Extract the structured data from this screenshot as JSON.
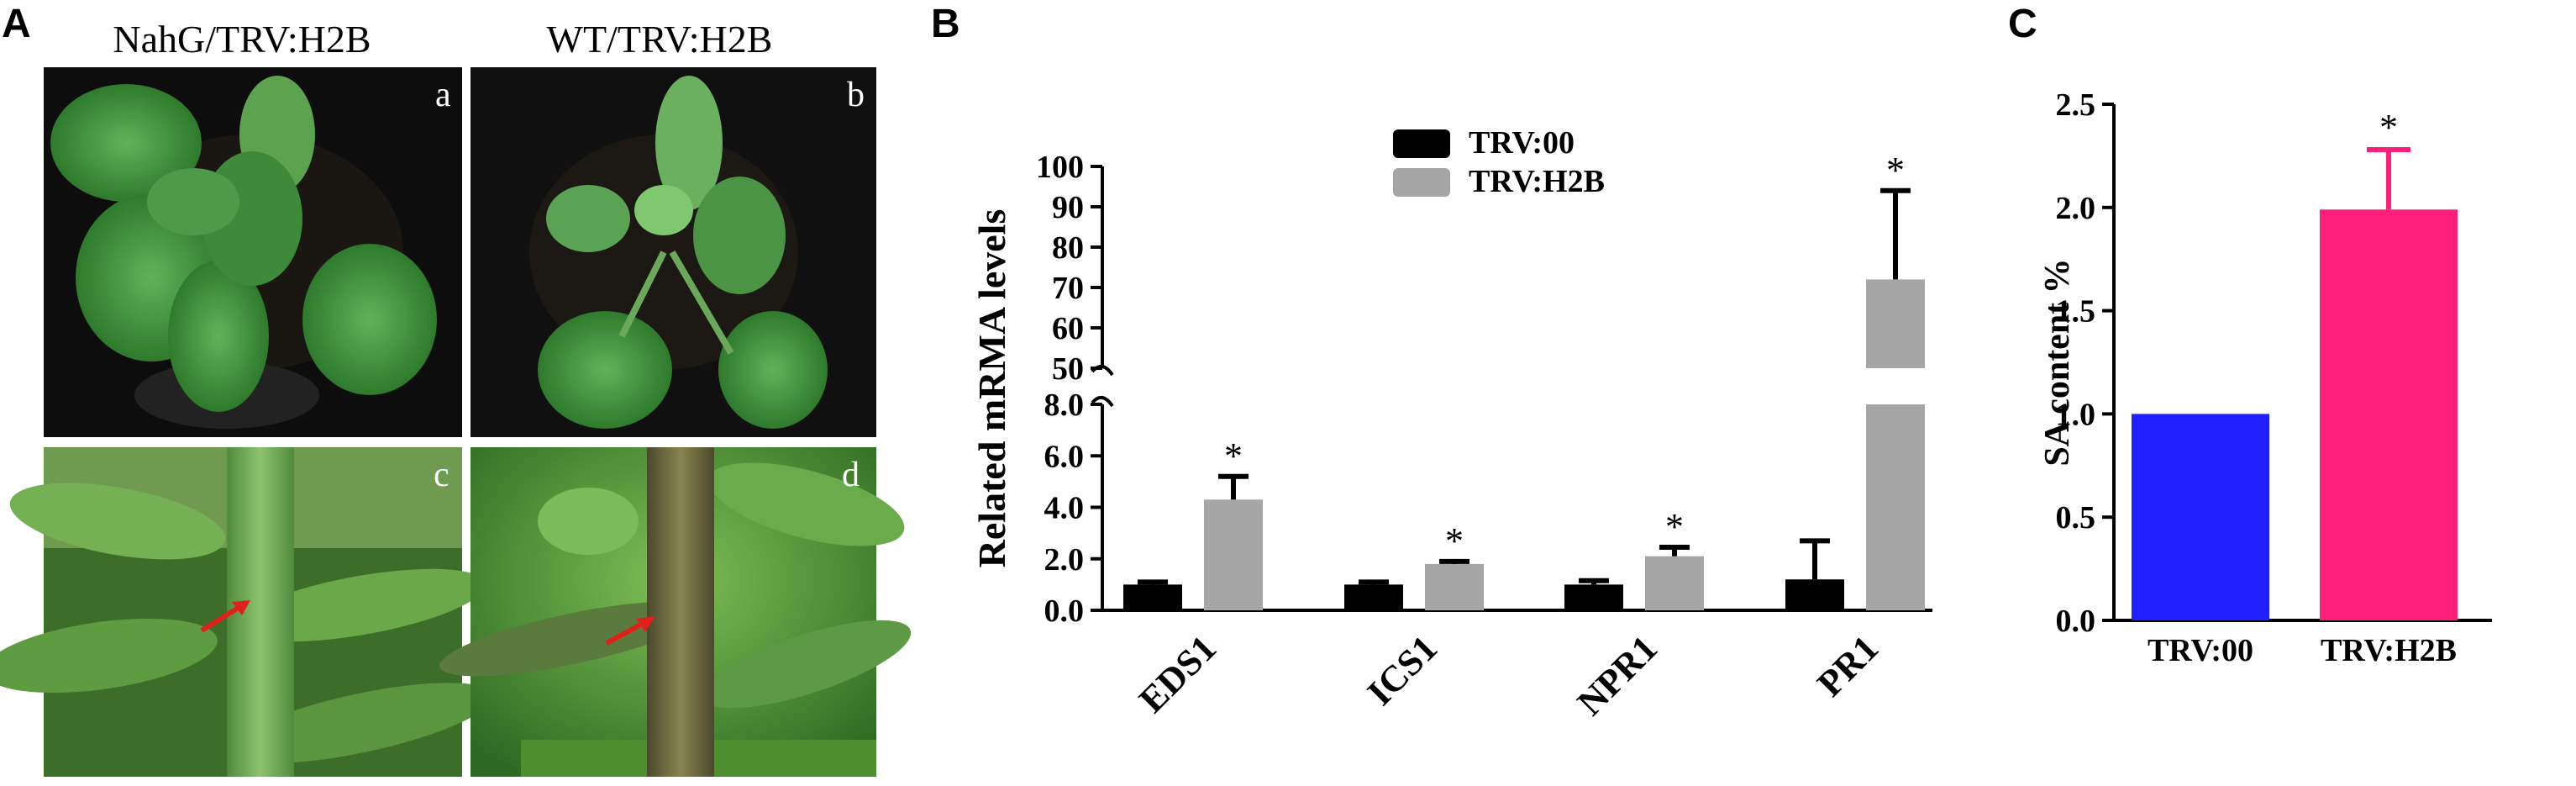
{
  "panels": {
    "A": {
      "letter": "A",
      "titles": [
        "NahG/TRV:H2B",
        "WT/TRV:H2B"
      ],
      "photo_labels": [
        "a",
        "b",
        "c",
        "d"
      ]
    },
    "B": {
      "letter": "B"
    },
    "C": {
      "letter": "C"
    }
  },
  "colors": {
    "trv00_B": "#000000",
    "trvh2b_B": "#a6a6a6",
    "trv00_C": "#1f1fff",
    "trvh2b_C": "#ff1f78",
    "arrow": "#e0201b"
  },
  "chart_data": [
    {
      "type": "bar",
      "panel": "B",
      "title": "",
      "xlabel": "",
      "ylabel": "Related mRMA levels",
      "categories": [
        "EDS1",
        "ICS1",
        "NPR1",
        "PR1"
      ],
      "series": [
        {
          "name": "TRV:00",
          "values": [
            1.0,
            1.0,
            1.0,
            1.2
          ],
          "errors": [
            0.1,
            0.1,
            0.15,
            1.5
          ]
        },
        {
          "name": "TRV:H2B",
          "values": [
            4.3,
            1.8,
            2.1,
            72
          ],
          "errors": [
            0.9,
            0.1,
            0.35,
            22
          ]
        }
      ],
      "significance": [
        {
          "series": "TRV:H2B",
          "category": "EDS1",
          "mark": "*"
        },
        {
          "series": "TRV:H2B",
          "category": "ICS1",
          "mark": "*"
        },
        {
          "series": "TRV:H2B",
          "category": "NPR1",
          "mark": "*"
        },
        {
          "series": "TRV:H2B",
          "category": "PR1",
          "mark": "*"
        }
      ],
      "broken_axis": {
        "lower_range": [
          0,
          8
        ],
        "upper_range": [
          50,
          100
        ],
        "lower_ticks": [
          "0.0",
          "2.0",
          "4.0",
          "6.0",
          "8.0"
        ],
        "upper_ticks": [
          "50",
          "60",
          "70",
          "80",
          "90",
          "100"
        ]
      },
      "legend": {
        "placement": "top-center",
        "entries": [
          "TRV:00",
          "TRV:H2B"
        ]
      },
      "grid": false
    },
    {
      "type": "bar",
      "panel": "C",
      "title": "",
      "xlabel": "",
      "ylabel": "SA content %",
      "categories": [
        "TRV:00",
        "TRV:H2B"
      ],
      "values": [
        1.0,
        1.99
      ],
      "errors": [
        0,
        0.29
      ],
      "significance": [
        {
          "category": "TRV:H2B",
          "mark": "*"
        }
      ],
      "ylim": [
        0,
        2.5
      ],
      "yticks": [
        "0.0",
        "0.5",
        "1.0",
        "1.5",
        "2.0",
        "2.5"
      ],
      "grid": false
    }
  ]
}
